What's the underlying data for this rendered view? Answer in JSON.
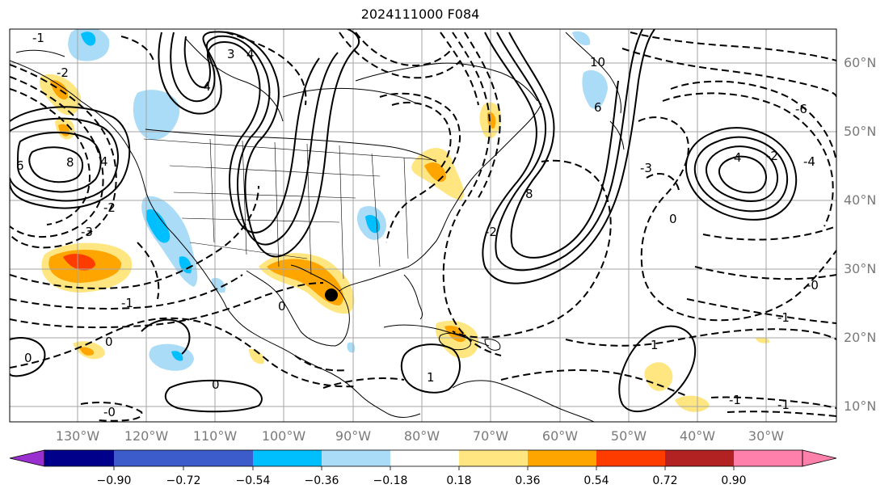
{
  "title": "2024111000 F084",
  "lat_labels": [
    "60°N",
    "50°N",
    "40°N",
    "30°N",
    "20°N",
    "10°N"
  ],
  "lon_labels": [
    "130°W",
    "120°W",
    "110°W",
    "100°W",
    "90°W",
    "80°W",
    "70°W",
    "60°W",
    "50°W",
    "40°W",
    "30°W"
  ],
  "colorbar": {
    "ticks": [
      "−0.90",
      "−0.72",
      "−0.54",
      "−0.36",
      "−0.18",
      "0.18",
      "0.36",
      "0.54",
      "0.72",
      "0.90"
    ],
    "colors": [
      "#9b30d0",
      "#00008b",
      "#3c5ccc",
      "#00bfff",
      "#aadcf7",
      "#ffffff",
      "#ffe680",
      "#ffa500",
      "#ff3c00",
      "#b22222",
      "#ff80aa"
    ]
  },
  "contour_labels": {
    "pos": [
      "3",
      "4",
      "6",
      "8",
      "4",
      "8",
      "10",
      "6",
      "4",
      "1",
      "1"
    ],
    "neg": [
      "-1",
      "-2",
      "-3",
      "-2",
      "-4",
      "-1",
      "0",
      "0",
      "0",
      "0",
      "0",
      "-0",
      "-1",
      "-1",
      "-2",
      "-6",
      "-3",
      "-4",
      "-2",
      "-1",
      "-0"
    ]
  },
  "legend": {
    "hurricane_marker": "storm-center"
  }
}
